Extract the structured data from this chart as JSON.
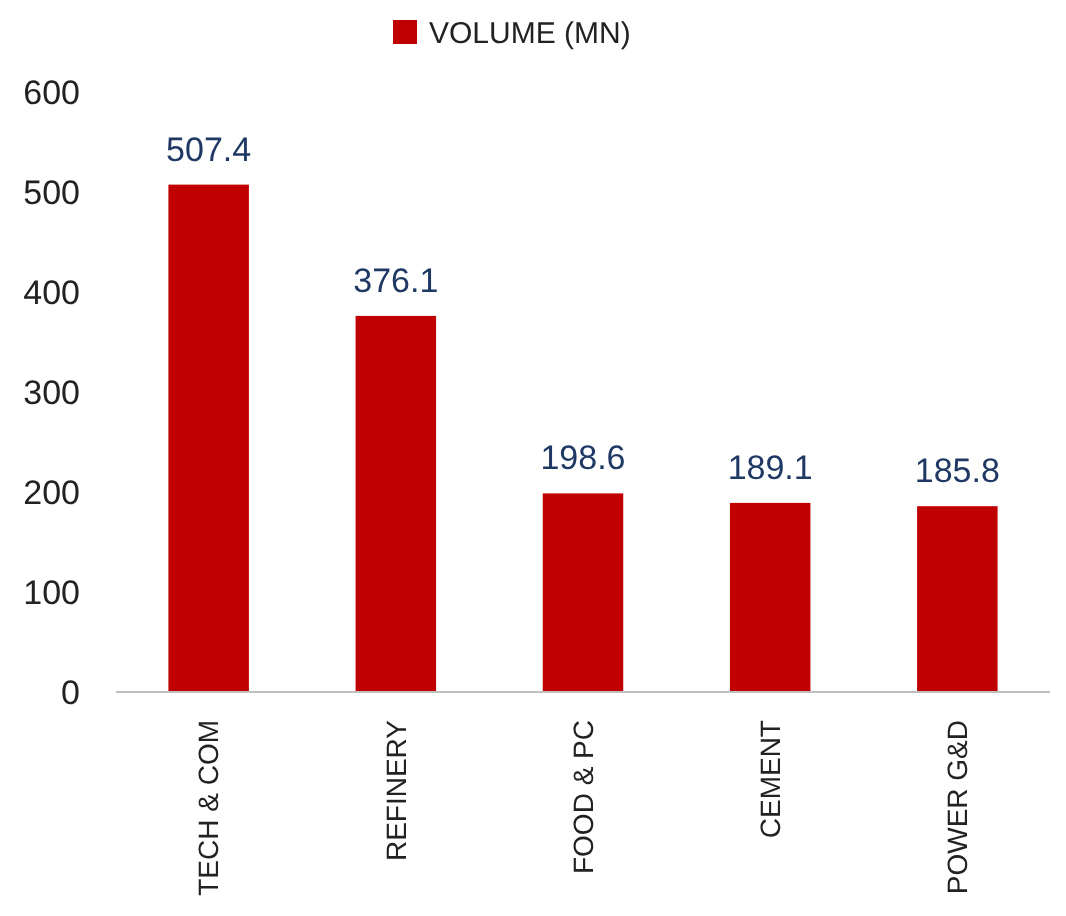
{
  "chart_data": {
    "type": "bar",
    "categories": [
      "TECH & COM",
      "REFINERY",
      "FOOD & PC",
      "CEMENT",
      "POWER G&D"
    ],
    "series": [
      {
        "name": "VOLUME (MN)",
        "color": "#c00000",
        "values": [
          507.4,
          376.1,
          198.6,
          189.1,
          185.8
        ]
      }
    ],
    "ylim": [
      0,
      600
    ],
    "yticks": [
      0,
      100,
      200,
      300,
      400,
      500,
      600
    ],
    "data_labels": true,
    "legend": "top",
    "grid": false
  }
}
